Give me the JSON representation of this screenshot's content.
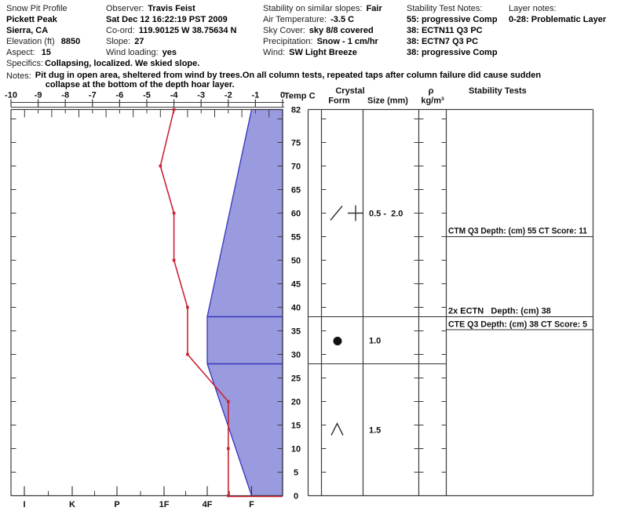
{
  "header": {
    "site": {
      "title": "Snow Pit Profile",
      "name": "Pickett Peak",
      "region": "Sierra, CA",
      "elevation_label": "Elevation (ft)",
      "elevation_value": "8850",
      "aspect_label": "Aspect:",
      "aspect_value": "15"
    },
    "observer": {
      "observer_label": "Observer:",
      "observer_value": "Travis Feist",
      "datetime": "Sat Dec 12 16:22:19 PST 2009",
      "coord_label": "Co-ord:",
      "coord_value": "119.90125 W 38.75634 N",
      "slope_label": "Slope:",
      "slope_value": "27",
      "wind_loading_label": "Wind loading:",
      "wind_loading_value": "yes"
    },
    "conditions": {
      "stability_label": "Stability on similar slopes:",
      "stability_value": "Fair",
      "air_temp_label": "Air Temperature:",
      "air_temp_value": "-3.5 C",
      "sky_label": "Sky Cover:",
      "sky_value": "sky 8/8 covered",
      "precip_label": "Precipitation:",
      "precip_value": "Snow - 1 cm/hr",
      "wind_label": "Wind:",
      "wind_value": "SW Light Breeze"
    },
    "stability_test_notes": {
      "title": "Stability Test Notes:",
      "n1": "55: progressive Comp",
      "n2": "38: ECTN11 Q3 PC",
      "n3": "38: ECTN7 Q3 PC",
      "n4": "38: progressive Comp"
    },
    "layer_notes": {
      "title": "Layer notes:",
      "n1": "0-28: Problematic Layer"
    },
    "specifics_label": "Specifics:",
    "specifics_value": "Collapsing, localized. We skied slope.",
    "notes_label": "Notes:",
    "notes_line1": "Pit dug in open area, sheltered from wind by trees.On all column tests, repeated taps after column failure did cause sudden",
    "notes_line2": "collapse at the bottom of the depth hoar layer."
  },
  "chart_data": {
    "type": "area",
    "temp_axis": {
      "label": "Temp C",
      "min": -10,
      "max": 0,
      "tick_labels": [
        "-10",
        "-9",
        "-8",
        "-7",
        "-6",
        "-5",
        "-4",
        "-3",
        "-2",
        "-1",
        "0"
      ]
    },
    "depth_axis": {
      "unit": "cm",
      "min": 0,
      "max": 82,
      "tick_labels": [
        82,
        75,
        70,
        65,
        60,
        55,
        50,
        45,
        40,
        35,
        30,
        25,
        20,
        15,
        10,
        5,
        0
      ],
      "minor_tick_step": 5
    },
    "hardness_axis": {
      "tick_labels": [
        "I",
        "K",
        "P",
        "1F",
        "4F",
        "F"
      ]
    },
    "temperature_series": {
      "name": "snow temperature",
      "points": [
        {
          "depth": 82,
          "temp": -4.0
        },
        {
          "depth": 70,
          "temp": -4.5
        },
        {
          "depth": 60,
          "temp": -4.0
        },
        {
          "depth": 50,
          "temp": -4.0
        },
        {
          "depth": 40,
          "temp": -3.5
        },
        {
          "depth": 30,
          "temp": -3.5
        },
        {
          "depth": 20,
          "temp": -2.0
        },
        {
          "depth": 10,
          "temp": -2.0
        },
        {
          "depth": 0,
          "temp": -2.0
        }
      ],
      "ground_segment": {
        "from": {
          "depth": 0,
          "temp": -2.0
        },
        "to": {
          "depth": 0,
          "temp": 0.0
        }
      }
    },
    "hardness_profile": {
      "vertices": [
        {
          "depth": 82,
          "hardness": "F"
        },
        {
          "depth": 38,
          "hardness": "4F"
        },
        {
          "depth": 28,
          "hardness": "4F"
        },
        {
          "depth": 0,
          "hardness": "F"
        }
      ],
      "layer_boundaries": [
        38,
        28
      ]
    },
    "layers": [
      {
        "from_depth": 82,
        "to_depth": 38,
        "grain_symbols": [
          "/",
          "+"
        ],
        "size_mm": "0.5 -  2.0"
      },
      {
        "from_depth": 38,
        "to_depth": 28,
        "grain_symbols": [
          "●"
        ],
        "size_mm": "1.0"
      },
      {
        "from_depth": 28,
        "to_depth": 0,
        "grain_symbols": [
          "Λ"
        ],
        "size_mm": "1.5"
      }
    ],
    "column_headers": {
      "crystal": "Crystal",
      "form": "Form",
      "size": "Size (mm)",
      "rho": "ρ",
      "rho_units": "kg/m³",
      "stability": "Stability Tests"
    },
    "stability_results": [
      {
        "label": "CTM Q3 Depth: (cm) 55 CT Score: 11",
        "line_depth": 55,
        "text_position": "above"
      },
      {
        "label": "2x ECTN   Depth: (cm) 38",
        "line_depth": 38,
        "text_position": "above"
      },
      {
        "label": "CTE Q3 Depth: (cm) 38 CT Score: 5",
        "line_depth": 38,
        "text_position": "below"
      }
    ],
    "colors": {
      "hardness_fill": "#9a9ade",
      "hardness_outline": "#3535c0",
      "temperature_line": "#cc2233",
      "axis": "#3b3b3b"
    }
  }
}
